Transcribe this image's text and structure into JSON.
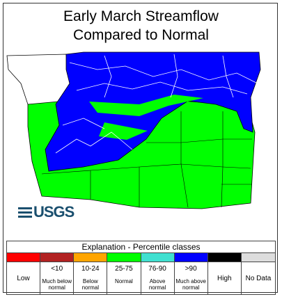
{
  "title": [
    "Early March Streamflow",
    "Compared to Normal"
  ],
  "logo": "USGS",
  "legend": {
    "heading": "Explanation - Percentile classes",
    "classes": [
      {
        "color": "#ff0000",
        "label": "Low"
      },
      {
        "color": "#b22222",
        "range": "<10",
        "label": "Much below normal"
      },
      {
        "color": "#ffa500",
        "range": "10-24",
        "label": "Below normal"
      },
      {
        "color": "#00ff00",
        "range": "25-75",
        "label": "Normal"
      },
      {
        "color": "#40e0d0",
        "range": "76-90",
        "label": "Above normal"
      },
      {
        "color": "#0000ff",
        "range": ">90",
        "label": "Much above normal"
      },
      {
        "color": "#000000",
        "label": "High"
      },
      {
        "color": "#dddddd",
        "label": "No Data"
      }
    ]
  }
}
